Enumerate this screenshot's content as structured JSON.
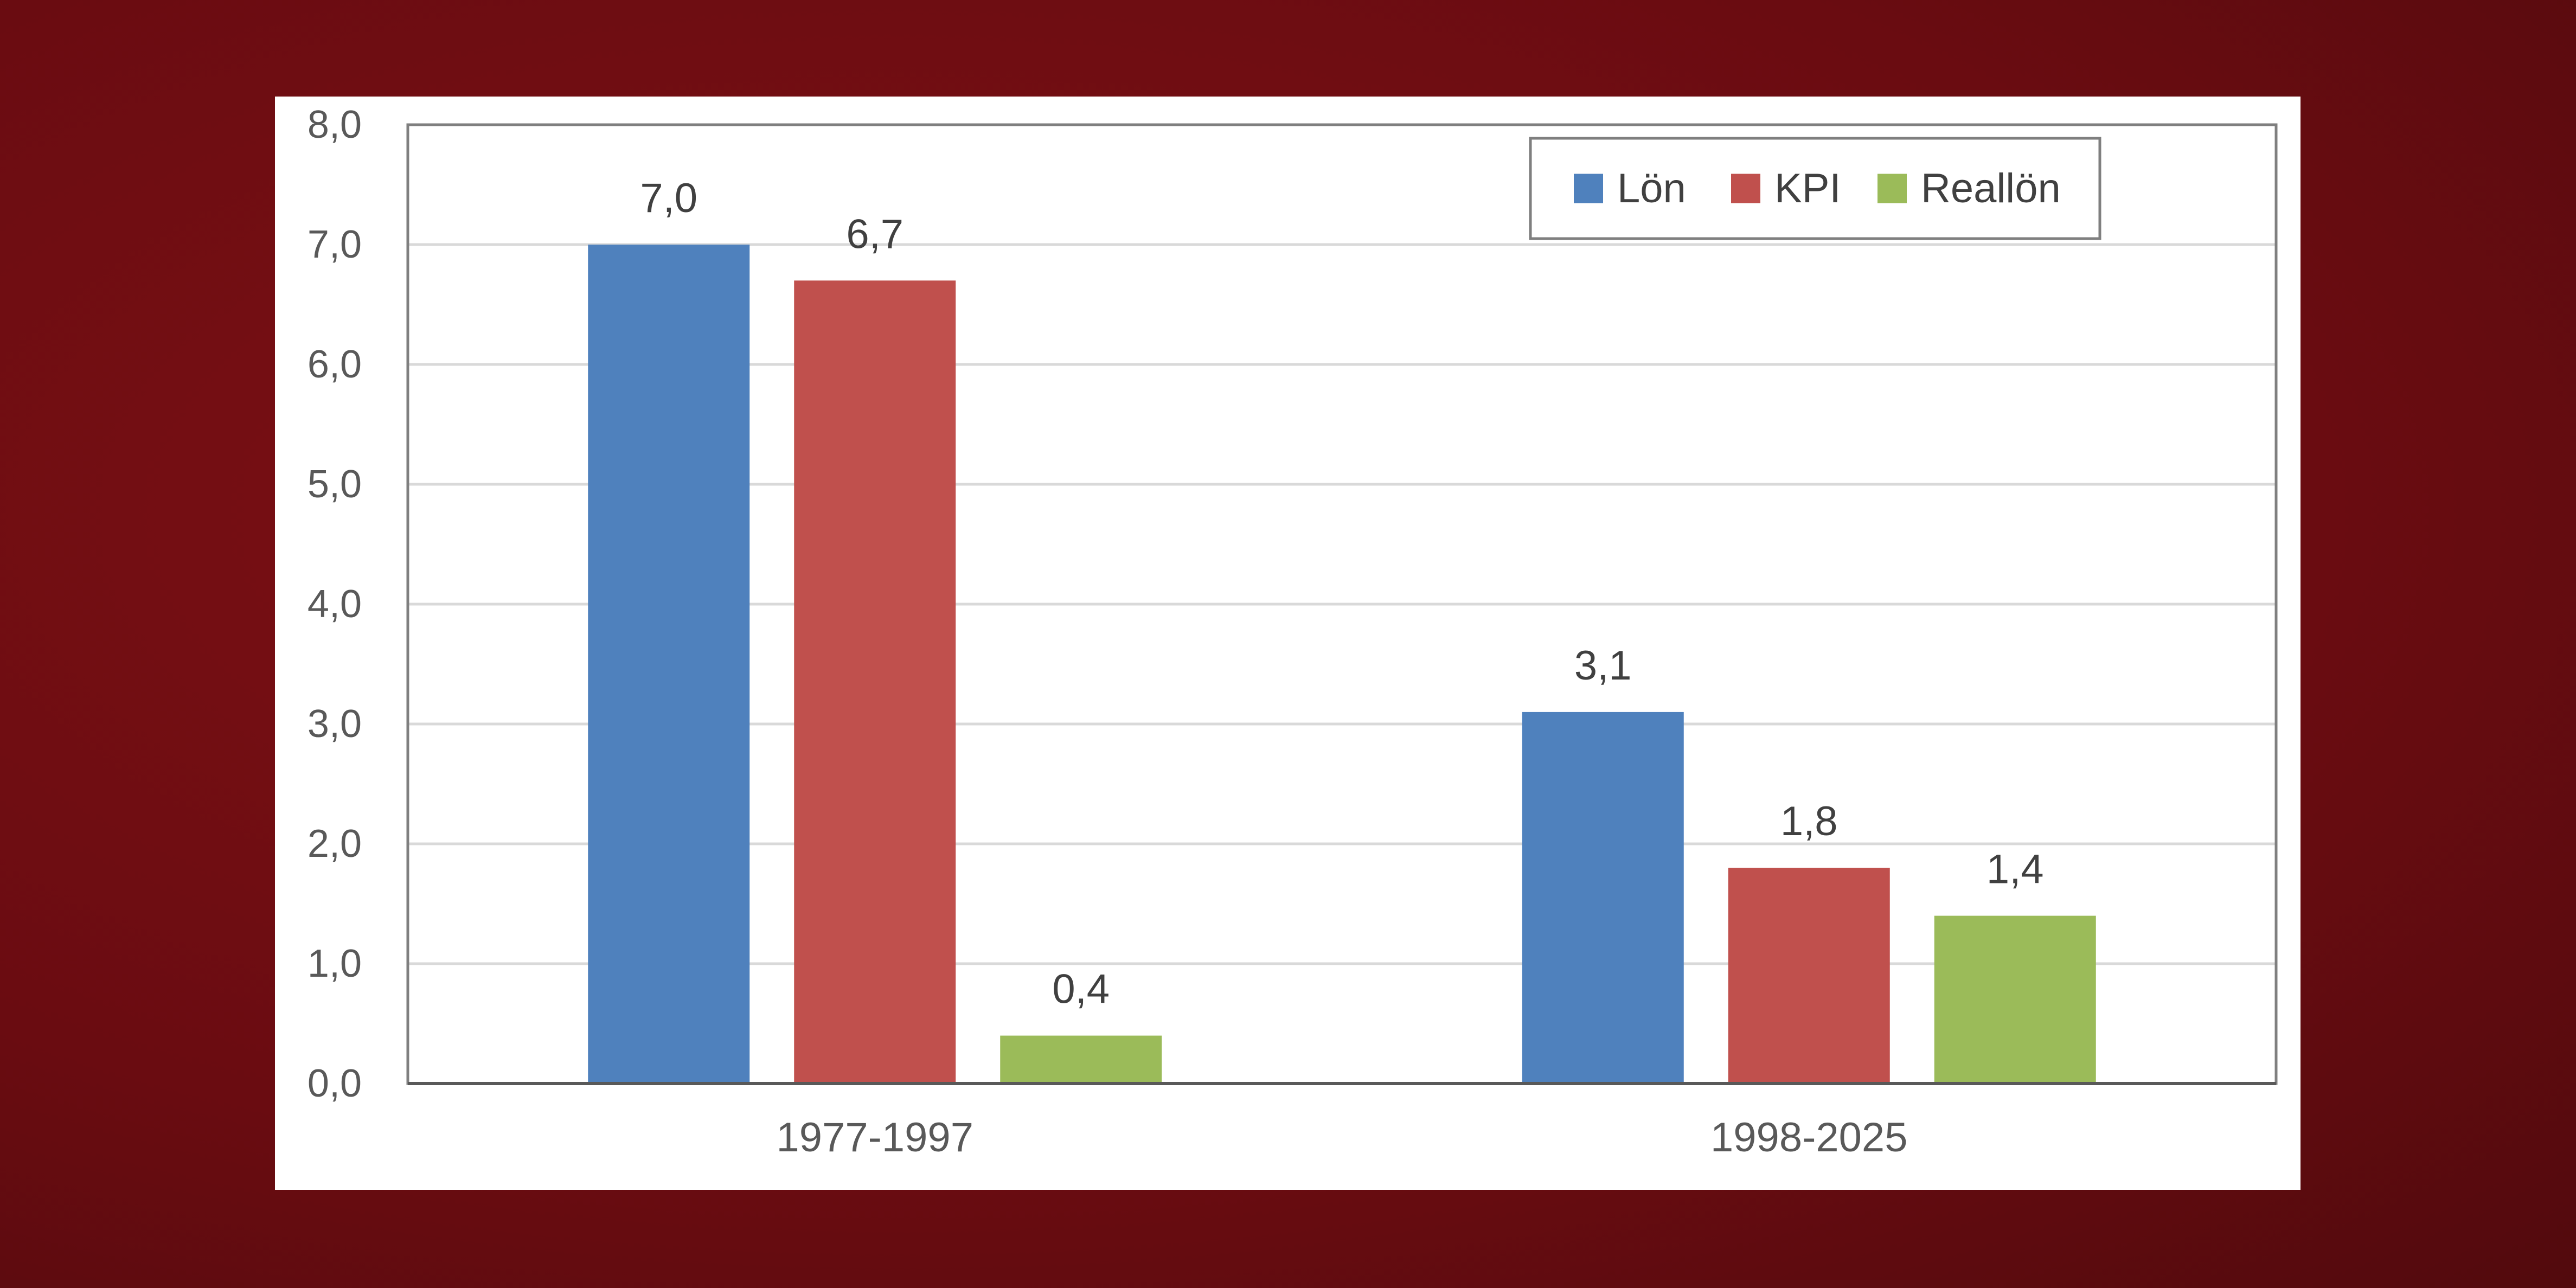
{
  "chart_data": {
    "type": "bar",
    "title": "",
    "xlabel": "",
    "ylabel": "",
    "categories": [
      "1977-1997",
      "1998-2025"
    ],
    "series": [
      {
        "name": "Lön",
        "color": "#4f81bd",
        "values": [
          7.0,
          3.1
        ],
        "labels": [
          "7,0",
          "3,1"
        ]
      },
      {
        "name": "KPI",
        "color": "#c0504d",
        "values": [
          6.7,
          1.8
        ],
        "labels": [
          "6,7",
          "1,8"
        ]
      },
      {
        "name": "Reallön",
        "color": "#9bbb59",
        "values": [
          0.4,
          1.4
        ],
        "labels": [
          "0,4",
          "1,4"
        ]
      }
    ],
    "ylim": [
      0,
      8
    ],
    "yticks": [
      0,
      1,
      2,
      3,
      4,
      5,
      6,
      7,
      8
    ],
    "ytick_labels": [
      "0,0",
      "1,0",
      "2,0",
      "3,0",
      "4,0",
      "5,0",
      "6,0",
      "7,0",
      "8,0"
    ],
    "grid": true,
    "legend_position": "top-right"
  }
}
